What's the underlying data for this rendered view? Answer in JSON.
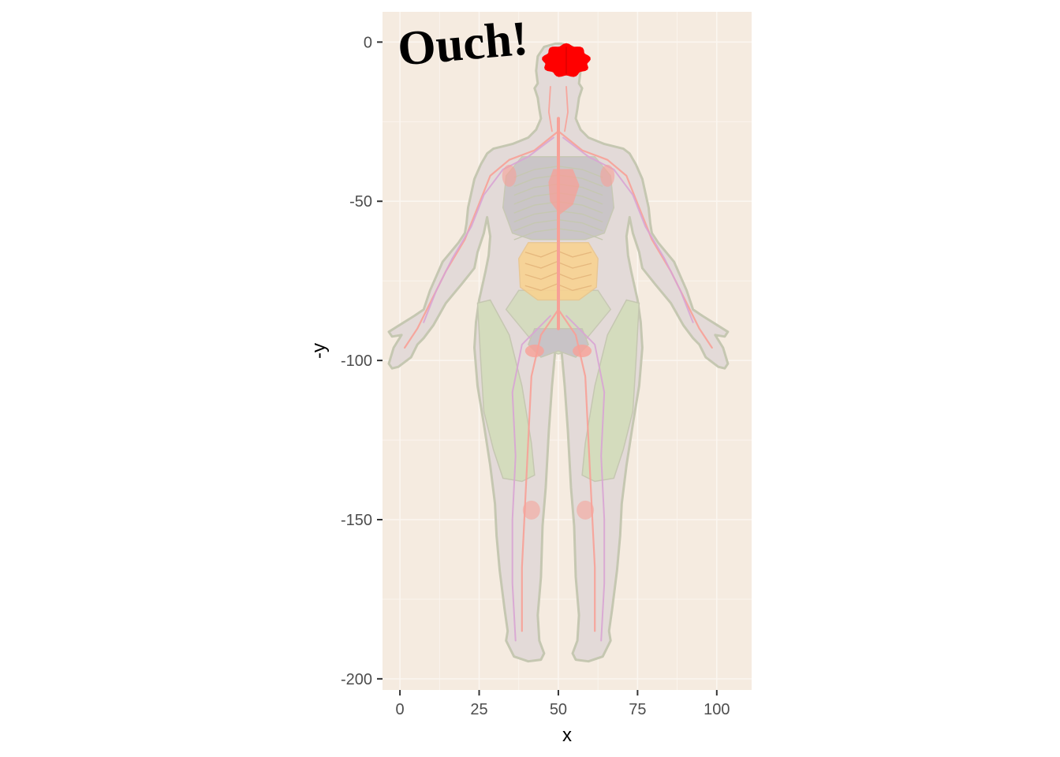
{
  "chart_data": {
    "type": "scatter",
    "xlabel": "x",
    "ylabel": "-y",
    "xlim": [
      -5.5,
      111
    ],
    "ylim": [
      -203.5,
      9.5
    ],
    "x_ticks": [
      0,
      25,
      50,
      75,
      100
    ],
    "x_tick_labels": [
      "0",
      "25",
      "50",
      "75",
      "100"
    ],
    "y_ticks": [
      0,
      -50,
      -100,
      -150,
      -200
    ],
    "y_tick_labels": [
      "0",
      "-50",
      "-100",
      "-150",
      "-200"
    ],
    "grid": true,
    "background_color": "#f5ebe0",
    "annotation": {
      "text": "Ouch!",
      "x": 20,
      "y": -2,
      "angle_deg": -5
    },
    "highlight": {
      "organ": "brain",
      "x_range": [
        45.5,
        59.5
      ],
      "y_range": [
        -11,
        -1
      ],
      "color": "#ff0000"
    },
    "colors": {
      "skin": "#e3dad8",
      "outline": "#c5c7b1",
      "muscle": "#d4dcbd",
      "bone": "#c8c3c6",
      "artery": "#f7a097",
      "vein": "#d8a4d4",
      "intestine": "#fad28e",
      "grid": "#fbf6f0"
    }
  }
}
